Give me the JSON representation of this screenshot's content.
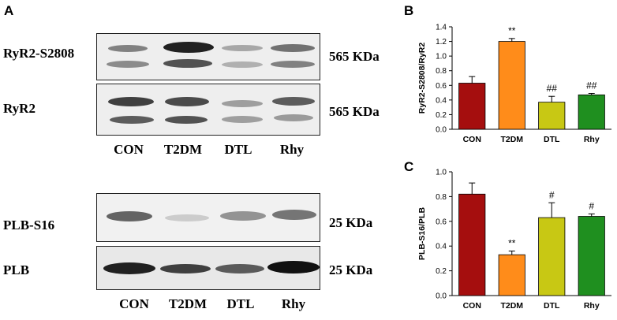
{
  "panels": {
    "a": "A",
    "b": "B",
    "c": "C"
  },
  "blots": {
    "lanes": [
      "CON",
      "T2DM",
      "DTL",
      "Rhy"
    ],
    "group1": [
      {
        "label": "RyR2-S2808",
        "size": "565 KDa"
      },
      {
        "label": "RyR2",
        "size": "565 KDa"
      }
    ],
    "group2": [
      {
        "label": "PLB-S16",
        "size": "25 KDa"
      },
      {
        "label": "PLB",
        "size": "25 KDa"
      }
    ]
  },
  "chart_data": [
    {
      "type": "bar",
      "panel": "B",
      "categories": [
        "CON",
        "T2DM",
        "DTL",
        "Rhy"
      ],
      "values": [
        0.63,
        1.2,
        0.37,
        0.47
      ],
      "errors": [
        0.09,
        0.04,
        0.08,
        0.02
      ],
      "annotations": [
        "",
        "**",
        "##",
        "##"
      ],
      "colors": [
        "#a50e0e",
        "#ff8c1a",
        "#c8c814",
        "#1f8f1f"
      ],
      "ylabel": "RyR2-S2808/RyR2",
      "ylim": [
        0,
        1.4
      ],
      "yticks": [
        "0.0",
        "0.2",
        "0.4",
        "0.6",
        "0.8",
        "1.0",
        "1.2",
        "1.4"
      ]
    },
    {
      "type": "bar",
      "panel": "C",
      "categories": [
        "CON",
        "T2DM",
        "DTL",
        "Rhy"
      ],
      "values": [
        0.82,
        0.33,
        0.63,
        0.64
      ],
      "errors": [
        0.09,
        0.03,
        0.12,
        0.02
      ],
      "annotations": [
        "",
        "**",
        "#",
        "#"
      ],
      "colors": [
        "#a50e0e",
        "#ff8c1a",
        "#c8c814",
        "#1f8f1f"
      ],
      "ylabel": "PLB-S16/PLB",
      "ylim": [
        0,
        1.0
      ],
      "yticks": [
        "0.0",
        "0.2",
        "0.4",
        "0.6",
        "0.8",
        "1.0"
      ]
    }
  ]
}
